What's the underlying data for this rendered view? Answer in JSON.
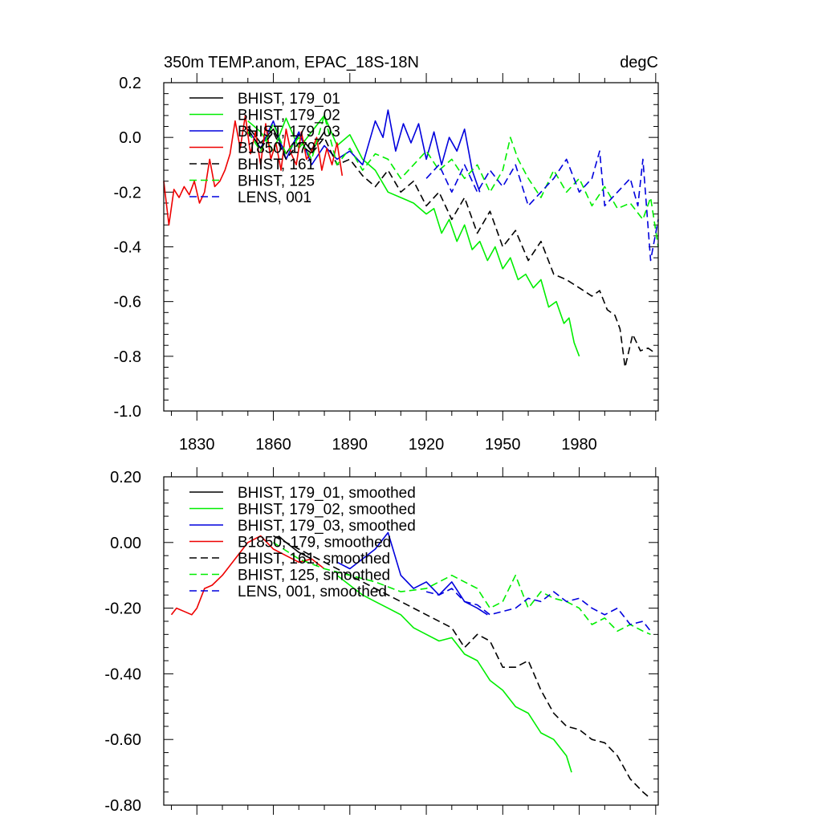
{
  "chart_data": [
    {
      "type": "line",
      "title": "350m TEMP.anom, EPAC_18S-18N",
      "title_right": "degC",
      "xlim": [
        1817,
        2011
      ],
      "ylim": [
        -1.0,
        0.2
      ],
      "yticks": [
        "0.2",
        "0.0",
        "-0.2",
        "-0.4",
        "-0.6",
        "-0.8",
        "-1.0"
      ],
      "xticks": [
        "1830",
        "1860",
        "1890",
        "1920",
        "1950",
        "1980"
      ],
      "legend_position": "top-left",
      "series": [
        {
          "name": "BHIST, 179_01",
          "color": "#000000",
          "dash": "solid",
          "x": [
            1850,
            1855,
            1860,
            1865,
            1870,
            1875,
            1880
          ],
          "y": [
            0.04,
            -0.02,
            0.03,
            -0.06,
            0.01,
            -0.05,
            0.02
          ]
        },
        {
          "name": "BHIST, 179_02",
          "color": "#00ee00",
          "dash": "solid",
          "x": [
            1850,
            1855,
            1860,
            1865,
            1870,
            1875,
            1880,
            1885,
            1890,
            1895,
            1900,
            1905,
            1910,
            1915,
            1920,
            1923,
            1926,
            1929,
            1932,
            1935,
            1938,
            1941,
            1944,
            1947,
            1950,
            1953,
            1956,
            1959,
            1962,
            1965,
            1968,
            1971,
            1974,
            1976,
            1978,
            1980
          ],
          "y": [
            0.06,
            0.02,
            -0.05,
            0.07,
            -0.04,
            0.02,
            0.08,
            -0.03,
            0.01,
            -0.08,
            -0.12,
            -0.2,
            -0.22,
            -0.24,
            -0.28,
            -0.26,
            -0.35,
            -0.3,
            -0.38,
            -0.32,
            -0.41,
            -0.38,
            -0.45,
            -0.4,
            -0.48,
            -0.44,
            -0.52,
            -0.5,
            -0.55,
            -0.52,
            -0.62,
            -0.6,
            -0.68,
            -0.66,
            -0.75,
            -0.8
          ]
        },
        {
          "name": "BHIST, 179_03",
          "color": "#0000dd",
          "dash": "solid",
          "x": [
            1850,
            1855,
            1860,
            1865,
            1870,
            1875,
            1880,
            1885,
            1890,
            1895,
            1900,
            1903,
            1905,
            1908,
            1911,
            1914,
            1917,
            1920,
            1923,
            1926,
            1929,
            1932,
            1935,
            1938,
            1941
          ],
          "y": [
            0.03,
            -0.04,
            0.06,
            -0.08,
            0.02,
            -0.1,
            -0.03,
            -0.08,
            -0.05,
            -0.1,
            0.06,
            0.0,
            0.1,
            -0.05,
            0.05,
            -0.02,
            0.05,
            -0.08,
            0.02,
            -0.1,
            0.0,
            -0.05,
            0.03,
            -0.12,
            -0.2
          ]
        },
        {
          "name": "B1850, 179",
          "color": "#ee0000",
          "dash": "solid",
          "x": [
            1817,
            1819,
            1821,
            1823,
            1825,
            1827,
            1829,
            1831,
            1833,
            1835,
            1837,
            1839,
            1841,
            1843,
            1845,
            1847,
            1849,
            1851,
            1853,
            1855,
            1857,
            1859,
            1861,
            1863,
            1865,
            1867,
            1869,
            1871,
            1873,
            1875,
            1877,
            1879,
            1881,
            1883,
            1885,
            1887
          ],
          "y": [
            -0.16,
            -0.32,
            -0.19,
            -0.22,
            -0.18,
            -0.21,
            -0.16,
            -0.24,
            -0.2,
            -0.08,
            -0.18,
            -0.16,
            -0.12,
            -0.06,
            0.06,
            -0.04,
            0.08,
            -0.06,
            0.02,
            -0.1,
            0.05,
            -0.08,
            -0.02,
            -0.12,
            0.03,
            -0.06,
            -0.1,
            0.02,
            -0.08,
            -0.05,
            0.0,
            -0.12,
            -0.04,
            -0.1,
            -0.02,
            -0.14
          ]
        },
        {
          "name": "BHIST, 161",
          "color": "#000000",
          "dash": "dashed",
          "x": [
            1850,
            1855,
            1860,
            1865,
            1870,
            1875,
            1880,
            1885,
            1890,
            1895,
            1900,
            1905,
            1910,
            1915,
            1920,
            1925,
            1930,
            1935,
            1940,
            1945,
            1950,
            1955,
            1960,
            1965,
            1970,
            1975,
            1980,
            1985,
            1988,
            1991,
            1994,
            1996,
            1998,
            2001,
            2004,
            2007,
            2010
          ],
          "y": [
            0.03,
            -0.04,
            0.02,
            -0.08,
            -0.02,
            -0.06,
            0.0,
            -0.1,
            -0.08,
            -0.14,
            -0.18,
            -0.12,
            -0.2,
            -0.16,
            -0.25,
            -0.2,
            -0.3,
            -0.22,
            -0.35,
            -0.27,
            -0.4,
            -0.34,
            -0.45,
            -0.38,
            -0.5,
            -0.52,
            -0.55,
            -0.58,
            -0.56,
            -0.63,
            -0.65,
            -0.7,
            -0.84,
            -0.72,
            -0.78,
            -0.77,
            -0.79
          ]
        },
        {
          "name": "BHIST, 125",
          "color": "#00ee00",
          "dash": "dashed",
          "x": [
            1850,
            1855,
            1860,
            1865,
            1870,
            1875,
            1880,
            1885,
            1890,
            1895,
            1900,
            1905,
            1910,
            1915,
            1920,
            1925,
            1930,
            1935,
            1940,
            1945,
            1950,
            1953,
            1956,
            1960,
            1965,
            1970,
            1975,
            1980,
            1985,
            1990,
            1995,
            2000,
            2005,
            2008,
            2011
          ],
          "y": [
            0.02,
            -0.05,
            0.05,
            -0.06,
            0.0,
            -0.08,
            0.08,
            -0.1,
            -0.04,
            -0.12,
            -0.06,
            -0.08,
            -0.15,
            -0.1,
            -0.05,
            -0.12,
            -0.08,
            -0.15,
            -0.1,
            -0.2,
            -0.12,
            0.0,
            -0.08,
            -0.15,
            -0.22,
            -0.12,
            -0.2,
            -0.15,
            -0.25,
            -0.18,
            -0.26,
            -0.24,
            -0.3,
            -0.22,
            -0.4
          ]
        },
        {
          "name": "LENS, 001",
          "color": "#0000dd",
          "dash": "dashed",
          "x": [
            1920,
            1925,
            1930,
            1935,
            1940,
            1945,
            1950,
            1955,
            1960,
            1965,
            1970,
            1975,
            1980,
            1985,
            1988,
            1990,
            1995,
            2000,
            2003,
            2005,
            2008,
            2011
          ],
          "y": [
            -0.15,
            -0.1,
            -0.2,
            -0.1,
            -0.2,
            -0.12,
            -0.18,
            -0.1,
            -0.25,
            -0.2,
            -0.15,
            -0.08,
            -0.2,
            -0.15,
            -0.05,
            -0.25,
            -0.2,
            -0.15,
            -0.25,
            -0.08,
            -0.45,
            -0.3
          ]
        }
      ]
    },
    {
      "type": "line",
      "title": "",
      "xlim": [
        1817,
        2011
      ],
      "ylim": [
        -0.8,
        0.2
      ],
      "yticks": [
        "0.20",
        "0.00",
        "-0.20",
        "-0.40",
        "-0.60",
        "-0.80"
      ],
      "xticks": [],
      "legend_position": "top-left",
      "series": [
        {
          "name": "BHIST, 179_01, smoothed",
          "color": "#000000",
          "dash": "solid",
          "x": [
            1862,
            1865,
            1870,
            1875
          ],
          "y": [
            0.02,
            0.0,
            -0.03,
            -0.05
          ]
        },
        {
          "name": "BHIST, 179_02, smoothed",
          "color": "#00ee00",
          "dash": "solid",
          "x": [
            1885,
            1890,
            1895,
            1900,
            1905,
            1910,
            1915,
            1920,
            1925,
            1930,
            1935,
            1940,
            1945,
            1950,
            1955,
            1960,
            1965,
            1970,
            1975,
            1977
          ],
          "y": [
            -0.1,
            -0.13,
            -0.16,
            -0.18,
            -0.2,
            -0.22,
            -0.26,
            -0.28,
            -0.3,
            -0.29,
            -0.34,
            -0.36,
            -0.42,
            -0.45,
            -0.5,
            -0.52,
            -0.58,
            -0.6,
            -0.65,
            -0.7
          ]
        },
        {
          "name": "BHIST, 179_03, smoothed",
          "color": "#0000dd",
          "dash": "solid",
          "x": [
            1885,
            1890,
            1895,
            1900,
            1905,
            1910,
            1915,
            1920,
            1925,
            1930,
            1935,
            1940,
            1944
          ],
          "y": [
            -0.06,
            -0.08,
            -0.05,
            -0.02,
            0.03,
            -0.1,
            -0.14,
            -0.12,
            -0.16,
            -0.12,
            -0.18,
            -0.2,
            -0.22
          ]
        },
        {
          "name": "B1850, 179, smoothed",
          "color": "#ee0000",
          "dash": "solid",
          "x": [
            1820,
            1822,
            1825,
            1828,
            1830,
            1833,
            1836,
            1840,
            1845,
            1850,
            1855,
            1860,
            1865,
            1870,
            1875,
            1880
          ],
          "y": [
            -0.22,
            -0.2,
            -0.21,
            -0.22,
            -0.2,
            -0.14,
            -0.13,
            -0.1,
            -0.05,
            0.0,
            0.02,
            -0.02,
            -0.04,
            -0.06,
            -0.05,
            -0.08
          ]
        },
        {
          "name": "BHIST, 161, smoothed",
          "color": "#000000",
          "dash": "dashed",
          "x": [
            1860,
            1870,
            1880,
            1890,
            1900,
            1910,
            1920,
            1930,
            1935,
            1940,
            1945,
            1950,
            1955,
            1960,
            1965,
            1970,
            1975,
            1980,
            1985,
            1990,
            1995,
            2000,
            2005,
            2008
          ],
          "y": [
            0.02,
            -0.02,
            -0.06,
            -0.1,
            -0.14,
            -0.18,
            -0.22,
            -0.26,
            -0.32,
            -0.28,
            -0.3,
            -0.38,
            -0.38,
            -0.36,
            -0.45,
            -0.52,
            -0.56,
            -0.57,
            -0.6,
            -0.61,
            -0.65,
            -0.72,
            -0.76,
            -0.78
          ]
        },
        {
          "name": "BHIST, 125, smoothed",
          "color": "#00ee00",
          "dash": "dashed",
          "x": [
            1860,
            1870,
            1880,
            1890,
            1900,
            1910,
            1920,
            1930,
            1935,
            1940,
            1945,
            1950,
            1955,
            1960,
            1965,
            1970,
            1975,
            1980,
            1985,
            1990,
            1995,
            2000,
            2005,
            2008
          ],
          "y": [
            0.0,
            -0.05,
            -0.08,
            -0.1,
            -0.12,
            -0.15,
            -0.14,
            -0.1,
            -0.12,
            -0.14,
            -0.2,
            -0.18,
            -0.1,
            -0.2,
            -0.15,
            -0.17,
            -0.18,
            -0.2,
            -0.25,
            -0.23,
            -0.27,
            -0.25,
            -0.27,
            -0.28
          ]
        },
        {
          "name": "LENS, 001, smoothed",
          "color": "#0000dd",
          "dash": "dashed",
          "x": [
            1920,
            1925,
            1930,
            1935,
            1940,
            1945,
            1950,
            1955,
            1960,
            1965,
            1970,
            1975,
            1980,
            1985,
            1990,
            1995,
            2000,
            2005,
            2008
          ],
          "y": [
            -0.15,
            -0.16,
            -0.14,
            -0.18,
            -0.19,
            -0.22,
            -0.21,
            -0.2,
            -0.17,
            -0.18,
            -0.15,
            -0.18,
            -0.17,
            -0.2,
            -0.22,
            -0.2,
            -0.25,
            -0.24,
            -0.27
          ]
        }
      ]
    }
  ]
}
